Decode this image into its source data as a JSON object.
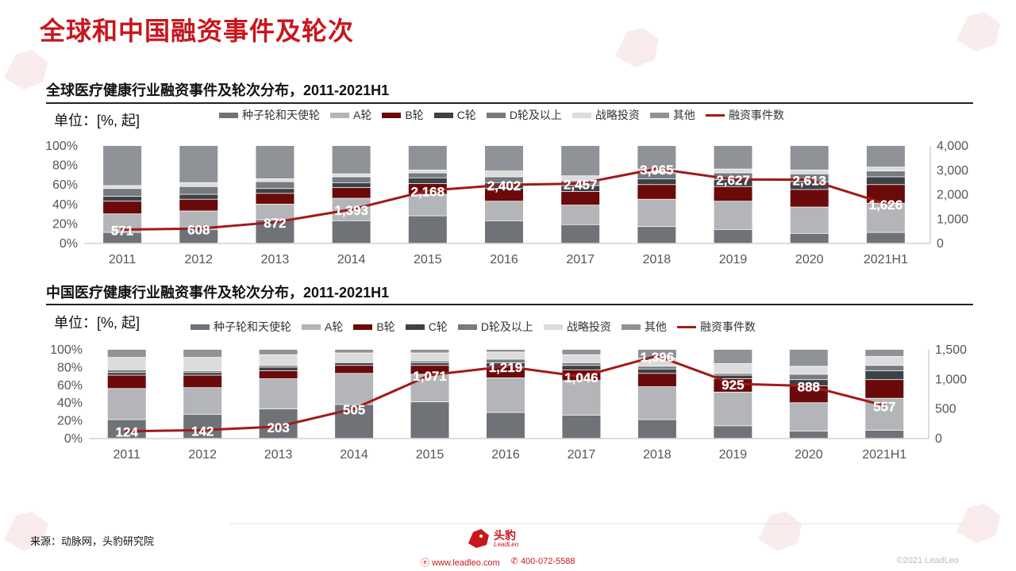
{
  "page": {
    "title": "全球和中国融资事件及轮次",
    "source": "来源：动脉网，头豹研究院",
    "brand": "头豹",
    "brand_sub": "LeadLeo",
    "website": "www.leadleo.com",
    "phone": "400-072-5588",
    "copyright": "©2021 LeadLeo"
  },
  "colors": {
    "accent": "#c8161d",
    "seed": "#6f7378",
    "a": "#b3b5b8",
    "b": "#6b0a0a",
    "c": "#3d4247",
    "d": "#777b80",
    "strategic": "#dcdcdc",
    "other": "#8f9296",
    "line": "#a11a1a"
  },
  "chart_data": [
    {
      "type": "bar",
      "title": "全球医疗健康行业融资事件及轮次分布，2011-2021H1",
      "unit": "单位：[%, 起]",
      "stacked": true,
      "categories": [
        "2011",
        "2012",
        "2013",
        "2014",
        "2015",
        "2016",
        "2017",
        "2018",
        "2019",
        "2020",
        "2021H1"
      ],
      "ylim": [
        0,
        100
      ],
      "y_ticks": [
        "0%",
        "20%",
        "40%",
        "60%",
        "80%",
        "100%"
      ],
      "y2lim": [
        0,
        4000
      ],
      "y2_ticks": [
        "0",
        "1,000",
        "2,000",
        "3,000",
        "4,000"
      ],
      "series": [
        {
          "name": "种子轮和天使轮",
          "color_key": "seed",
          "values": [
            11,
            14,
            24,
            23,
            28,
            23,
            19,
            17,
            14,
            10,
            11
          ]
        },
        {
          "name": "A轮",
          "color_key": "a",
          "values": [
            19,
            19,
            16,
            23,
            22,
            20,
            20,
            28,
            29,
            27,
            30
          ]
        },
        {
          "name": "B轮",
          "color_key": "b",
          "values": [
            13,
            12,
            11,
            11,
            11,
            13,
            14,
            15,
            15,
            18,
            19
          ]
        },
        {
          "name": "C轮",
          "color_key": "c",
          "values": [
            5,
            5,
            5,
            5,
            6,
            6,
            6,
            6,
            7,
            8,
            8
          ]
        },
        {
          "name": "D轮及以上",
          "color_key": "d",
          "values": [
            8,
            8,
            7,
            6,
            5,
            6,
            5,
            6,
            7,
            8,
            6
          ]
        },
        {
          "name": "战略投资",
          "color_key": "strategic",
          "values": [
            3,
            4,
            3,
            3,
            3,
            6,
            5,
            4,
            4,
            4,
            4
          ]
        },
        {
          "name": "其他",
          "color_key": "other",
          "values": [
            41,
            38,
            34,
            29,
            25,
            26,
            31,
            24,
            24,
            25,
            22
          ]
        }
      ],
      "line": {
        "name": "融资事件数",
        "values": [
          571,
          608,
          872,
          1393,
          2168,
          2402,
          2457,
          3065,
          2627,
          2613,
          1626
        ],
        "labels": [
          "571",
          "608",
          "872",
          "1,393",
          "2,168",
          "2,402",
          "2,457",
          "3,065",
          "2,627",
          "2,613",
          "1,626"
        ]
      }
    },
    {
      "type": "bar",
      "title": "中国医疗健康行业融资事件及轮次分布，2011-2021H1",
      "unit": "单位：[%, 起]",
      "stacked": true,
      "categories": [
        "2011",
        "2012",
        "2013",
        "2014",
        "2015",
        "2016",
        "2017",
        "2018",
        "2019",
        "2020",
        "2021H1"
      ],
      "ylim": [
        0,
        100
      ],
      "y_ticks": [
        "0%",
        "20%",
        "40%",
        "60%",
        "80%",
        "100%"
      ],
      "y2lim": [
        0,
        1500
      ],
      "y2_ticks": [
        "0",
        "500",
        "1,000",
        "1,500"
      ],
      "series": [
        {
          "name": "种子轮和天使轮",
          "color_key": "seed",
          "values": [
            21,
            27,
            33,
            38,
            41,
            29,
            26,
            21,
            14,
            8,
            9
          ]
        },
        {
          "name": "A轮",
          "color_key": "a",
          "values": [
            35,
            30,
            34,
            35,
            31,
            39,
            39,
            37,
            38,
            32,
            36
          ]
        },
        {
          "name": "B轮",
          "color_key": "b",
          "values": [
            15,
            14,
            9,
            9,
            10,
            12,
            12,
            15,
            15,
            19,
            21
          ]
        },
        {
          "name": "C轮",
          "color_key": "c",
          "values": [
            3,
            3,
            4,
            3,
            3,
            5,
            5,
            5,
            4,
            7,
            10
          ]
        },
        {
          "name": "D轮及以上",
          "color_key": "d",
          "values": [
            3,
            2,
            2,
            1,
            2,
            4,
            3,
            3,
            2,
            6,
            6
          ]
        },
        {
          "name": "战略投资",
          "color_key": "strategic",
          "values": [
            14,
            15,
            12,
            10,
            9,
            8,
            9,
            9,
            11,
            9,
            10
          ]
        },
        {
          "name": "其他",
          "color_key": "other",
          "values": [
            9,
            9,
            6,
            4,
            4,
            3,
            6,
            10,
            16,
            19,
            8
          ]
        }
      ],
      "line": {
        "name": "融资事件数",
        "values": [
          124,
          142,
          203,
          505,
          1071,
          1219,
          1046,
          1396,
          925,
          888,
          557
        ],
        "labels": [
          "124",
          "142",
          "203",
          "505",
          "1,071",
          "1,219",
          "1,046",
          "1,396",
          "925",
          "888",
          "557"
        ]
      }
    }
  ]
}
